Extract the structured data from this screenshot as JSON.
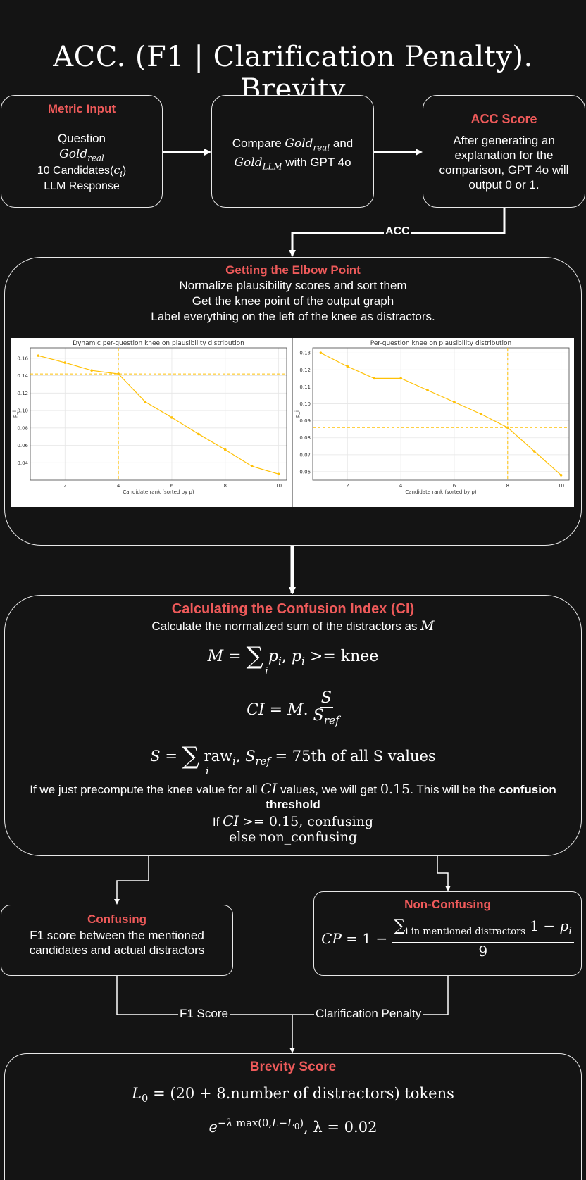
{
  "title": {
    "acc": "ACC.",
    "middle": "(F1 | Clarification Penalty).",
    "end": "Brevity"
  },
  "metric_input": {
    "heading": "Metric Input",
    "line1": "Question",
    "gold_base": "Gold",
    "gold_sub": "real",
    "line3a": "10 Candidates(",
    "line3_ci": "c",
    "line3_sub": "i",
    "line3b": ")",
    "line4": "LLM Response"
  },
  "compare": {
    "t1": "Compare",
    "gold": "Gold",
    "sub_real": "real",
    "t2": "and",
    "sub_llm": "LLM",
    "t3": "with GPT 4o"
  },
  "acc_score": {
    "heading": "ACC Score",
    "body": "After generating an explanation for the comparison, GPT 4o will output 0 or 1."
  },
  "acc_edge_label": "ACC",
  "elbow": {
    "heading": "Getting the Elbow Point",
    "line1": "Normalize plausibility scores and sort them",
    "line2": "Get the knee point of the output graph",
    "line3": "Label everything on the left of the knee as distractors."
  },
  "chart_data": [
    {
      "type": "line",
      "title": "Dynamic per-question knee on plausibility distribution",
      "xlabel": "Candidate rank (sorted by p)",
      "ylabel": "p_i",
      "x": [
        1,
        2,
        3,
        4,
        5,
        6,
        7,
        8,
        9,
        10
      ],
      "values": [
        0.163,
        0.155,
        0.146,
        0.142,
        0.11,
        0.092,
        0.073,
        0.055,
        0.036,
        0.027
      ],
      "xlim": [
        0.7,
        10.3
      ],
      "ylim": [
        0.02,
        0.172
      ],
      "xticks": [
        2,
        4,
        6,
        8,
        10
      ],
      "yticks": [
        0.04,
        0.06,
        0.08,
        0.1,
        0.12,
        0.14,
        0.16
      ],
      "ytick_labels": [
        "0.04",
        "0.06",
        "0.08",
        "0.10",
        "0.12",
        "0.14",
        "0.16"
      ],
      "knee_x": 4,
      "knee_y": 0.142,
      "grid": true,
      "color": "#ffc107"
    },
    {
      "type": "line",
      "title": "Per-question knee on plausibility distribution",
      "xlabel": "Candidate rank (sorted by p)",
      "ylabel": "p_i",
      "x": [
        1,
        2,
        3,
        4,
        5,
        6,
        7,
        8,
        9,
        10
      ],
      "values": [
        0.13,
        0.122,
        0.115,
        0.115,
        0.108,
        0.101,
        0.094,
        0.086,
        0.072,
        0.058
      ],
      "xlim": [
        0.7,
        10.3
      ],
      "ylim": [
        0.055,
        0.133
      ],
      "xticks": [
        2,
        4,
        6,
        8,
        10
      ],
      "yticks": [
        0.06,
        0.07,
        0.08,
        0.09,
        0.1,
        0.11,
        0.12,
        0.13
      ],
      "ytick_labels": [
        "0.06",
        "0.07",
        "0.08",
        "0.09",
        "0.10",
        "0.11",
        "0.12",
        "0.13"
      ],
      "knee_x": 8,
      "knee_y": 0.086,
      "grid": true,
      "color": "#ffc107"
    }
  ],
  "ci": {
    "heading": "Calculating the Confusion Index (CI)",
    "line1": "Calculate the normalized sum of the distractors as",
    "M": "M",
    "knee_text": "knee",
    "sref_text": "75th of all S values",
    "raw_text": "raw",
    "precompute_a": "If we just precompute the knee value for all",
    "precompute_ci": "CI",
    "precompute_b": "values, we will get",
    "precompute_val": "0.15",
    "precompute_c": ". This will be the",
    "precompute_bold": "confusion threshold",
    "if_text": "If",
    "if_rest": ">= 0.15, confusing",
    "else_text": "else",
    "else_rest": "non_confusing"
  },
  "confusing": {
    "heading": "Confusing",
    "body": "F1 score between the mentioned candidates and actual distractors"
  },
  "non_confusing": {
    "heading": "Non-Confusing",
    "sum_sub": "i in mentioned distractors",
    "denominator": "9"
  },
  "edge_f1": "F1 Score",
  "edge_cp": "Clarification Penalty",
  "brevity": {
    "heading": "Brevity Score",
    "l0_rest": "= (20 + 8.number of distractors) tokens",
    "lambda_rest": ", λ = 0.02"
  }
}
